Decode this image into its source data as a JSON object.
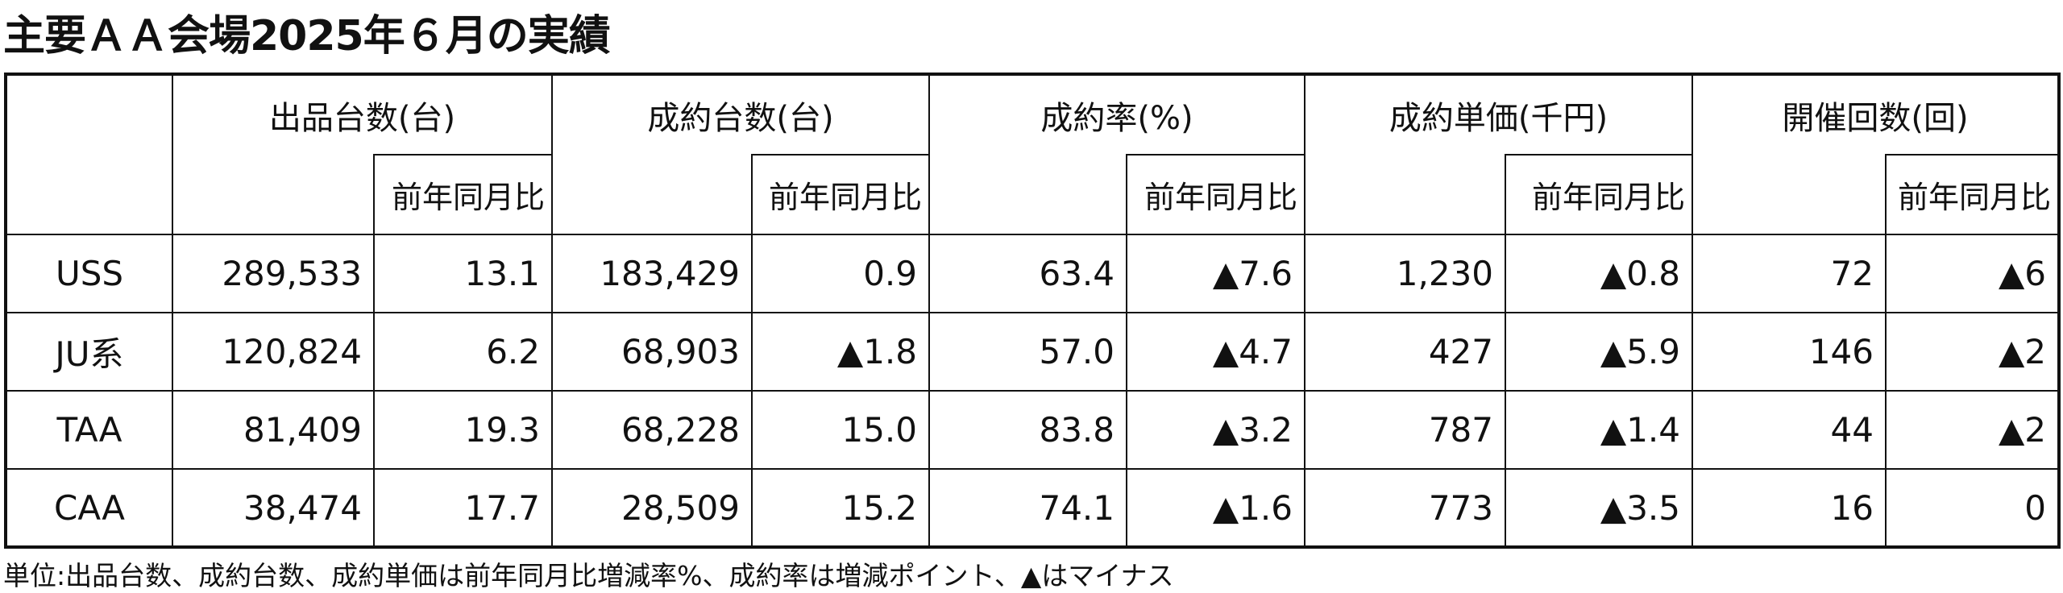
{
  "header": {
    "title": "主要ＡＡ会場2025年６月の実績"
  },
  "table": {
    "groups": [
      "出品台数(台)",
      "成約台数(台)",
      "成約率(%)",
      "成約単価(千円)",
      "開催回数(回)"
    ],
    "sub_header": "前年同月比",
    "rows": [
      [
        "USS",
        "289,533",
        "13.1",
        "183,429",
        "0.9",
        "63.4",
        "▲7.6",
        "1,230",
        "▲0.8",
        "72",
        "▲6"
      ],
      [
        "JU系",
        "120,824",
        "6.2",
        "68,903",
        "▲1.8",
        "57.0",
        "▲4.7",
        "427",
        "▲5.9",
        "146",
        "▲2"
      ],
      [
        "TAA",
        "81,409",
        "19.3",
        "68,228",
        "15.0",
        "83.8",
        "▲3.2",
        "787",
        "▲1.4",
        "44",
        "▲2"
      ],
      [
        "CAA",
        "38,474",
        "17.7",
        "28,509",
        "15.2",
        "74.1",
        "▲1.6",
        "773",
        "▲3.5",
        "16",
        "0"
      ]
    ]
  },
  "footnote": "単位:出品台数、成約台数、成約単価は前年同月比増減率%、成約率は増減ポイント、▲はマイナス"
}
